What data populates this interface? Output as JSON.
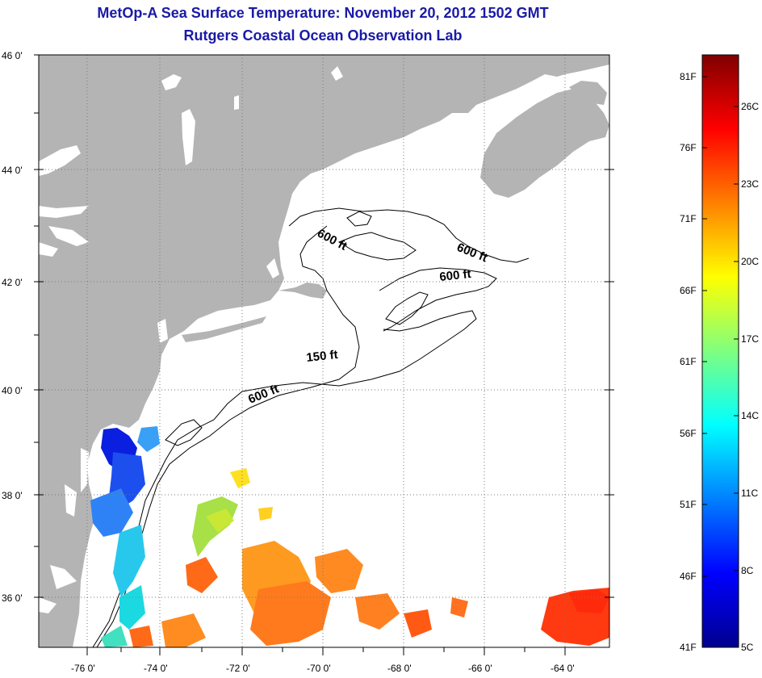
{
  "title": {
    "line1": "MetOp-A Sea Surface Temperature:  November 20, 2012 1502 GMT",
    "line2": "Rutgers Coastal Ocean Observation Lab"
  },
  "axes": {
    "lat_ticks": [
      "46 0'",
      "44 0'",
      "42 0'",
      "40 0'",
      "38 0'",
      "36 0'"
    ],
    "lon_ticks": [
      "-76 0'",
      "-74 0'",
      "-72 0'",
      "-70 0'",
      "-68 0'",
      "-66 0'",
      "-64 0'"
    ]
  },
  "depth_contours": [
    "600 ft",
    "600 ft",
    "600 ft",
    "150 ft",
    "600 ft"
  ],
  "colorbar": {
    "fahrenheit": [
      "81F",
      "76F",
      "71F",
      "66F",
      "61F",
      "56F",
      "51F",
      "46F",
      "41F"
    ],
    "celsius": [
      "26C",
      "23C",
      "20C",
      "17C",
      "14C",
      "11C",
      "8C",
      "5C"
    ]
  },
  "colors": {
    "title": "#1a1aa6",
    "land": "#b4b4b4",
    "sea": "#ffffff",
    "grid": "#7a7a7a"
  }
}
